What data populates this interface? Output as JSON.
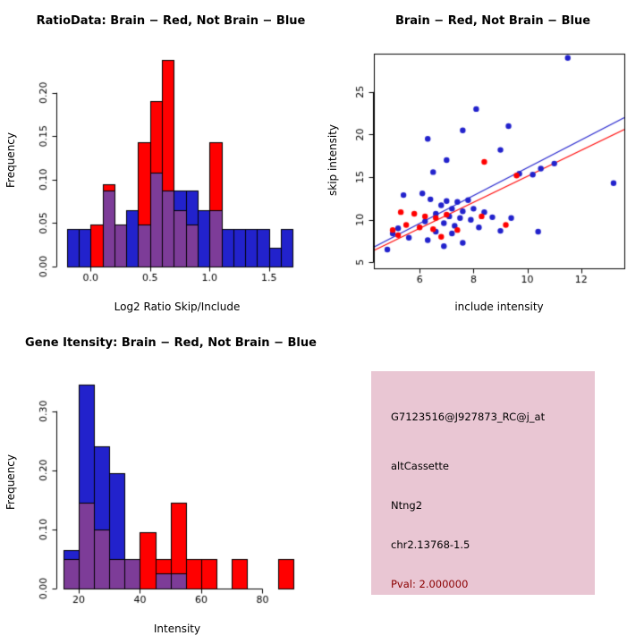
{
  "colors": {
    "red": "#FF0000",
    "blue": "#2222CC",
    "overlap_purple": "#7D3C98",
    "axis": "#000000",
    "info_box_bg": "#E9C6D3",
    "pval_text": "#8B0000"
  },
  "info_box": {
    "probe_id": "G7123516@J927873_RC@j_at",
    "event_type": "altCassette",
    "gene": "Ntng2",
    "location": "chr2.13768-1.5",
    "pval": "Pval: 2.000000"
  },
  "chart_data": [
    {
      "type": "bar",
      "variant": "overlaid-histograms",
      "title": "RatioData: Brain − Red, Not Brain − Blue",
      "xlabel": "Log2 Ratio Skip/Include",
      "ylabel": "Frequency",
      "legend": "Brain = red, Not Brain = blue, overlap = purple",
      "bin_start": -0.2,
      "bin_width": 0.1,
      "xlim": [
        -0.28,
        1.78
      ],
      "ylim": [
        0,
        0.245
      ],
      "xticks": [
        [
          0,
          "0.0"
        ],
        [
          0.5,
          "0.5"
        ],
        [
          1,
          "1.0"
        ],
        [
          1.5,
          "1.5"
        ]
      ],
      "yticks": [
        [
          0,
          "0.00"
        ],
        [
          0.05,
          "0.05"
        ],
        [
          0.1,
          "0.10"
        ],
        [
          0.15,
          "0.15"
        ],
        [
          0.2,
          "0.20"
        ]
      ],
      "series": [
        {
          "name": "Not Brain",
          "color": "blue",
          "values": [
            0.043,
            0.043,
            0,
            0.087,
            0.048,
            0.065,
            0.048,
            0.108,
            0.087,
            0.087,
            0.087,
            0.065,
            0.065,
            0.043,
            0.043,
            0.043,
            0.043,
            0.022,
            0.043
          ]
        },
        {
          "name": "Brain",
          "color": "red",
          "values": [
            0,
            0,
            0.048,
            0.095,
            0.048,
            0,
            0.143,
            0.19,
            0.238,
            0.065,
            0.048,
            0,
            0.143,
            0,
            0,
            0,
            0,
            0,
            0
          ]
        }
      ]
    },
    {
      "type": "scatter",
      "title": "Brain − Red, Not Brain − Blue",
      "xlabel": "include intensity",
      "ylabel": "skip intensity",
      "xlim": [
        4.3,
        13.6
      ],
      "ylim": [
        4.3,
        29.5
      ],
      "xticks": [
        [
          6,
          "6"
        ],
        [
          8,
          "8"
        ],
        [
          10,
          "10"
        ],
        [
          12,
          "12"
        ]
      ],
      "yticks": [
        [
          5,
          "5"
        ],
        [
          10,
          "10"
        ],
        [
          15,
          "15"
        ],
        [
          20,
          "20"
        ],
        [
          25,
          "25"
        ]
      ],
      "series": [
        {
          "name": "Not Brain",
          "color": "blue",
          "points": [
            [
              11.5,
              29
            ],
            [
              8.1,
              23
            ],
            [
              9.3,
              21
            ],
            [
              7.6,
              20.5
            ],
            [
              6.3,
              19.5
            ],
            [
              9.0,
              18.2
            ],
            [
              7.0,
              17
            ],
            [
              11.0,
              16.6
            ],
            [
              10.5,
              16
            ],
            [
              6.5,
              15.6
            ],
            [
              10.2,
              15.3
            ],
            [
              9.7,
              15.4
            ],
            [
              13.2,
              14.3
            ],
            [
              5.4,
              12.9
            ],
            [
              6.1,
              13.1
            ],
            [
              6.4,
              12.4
            ],
            [
              7.0,
              12.2
            ],
            [
              7.4,
              12.1
            ],
            [
              7.8,
              12.3
            ],
            [
              6.8,
              11.7
            ],
            [
              7.2,
              11.3
            ],
            [
              7.6,
              11.0
            ],
            [
              8.0,
              11.3
            ],
            [
              8.4,
              10.9
            ],
            [
              6.6,
              10.7
            ],
            [
              7.1,
              10.4
            ],
            [
              7.5,
              10.2
            ],
            [
              7.9,
              10.0
            ],
            [
              8.7,
              10.3
            ],
            [
              9.4,
              10.2
            ],
            [
              6.2,
              9.8
            ],
            [
              6.9,
              9.6
            ],
            [
              7.3,
              9.3
            ],
            [
              8.2,
              9.1
            ],
            [
              5.2,
              9.0
            ],
            [
              5.0,
              8.4
            ],
            [
              6.6,
              8.6
            ],
            [
              7.2,
              8.4
            ],
            [
              9.0,
              8.7
            ],
            [
              10.4,
              8.6
            ],
            [
              5.6,
              7.9
            ],
            [
              6.3,
              7.6
            ],
            [
              7.6,
              7.3
            ],
            [
              6.9,
              6.9
            ],
            [
              4.8,
              6.5
            ]
          ]
        },
        {
          "name": "Brain",
          "color": "red",
          "points": [
            [
              8.4,
              16.8
            ],
            [
              9.6,
              15.2
            ],
            [
              5.3,
              10.9
            ],
            [
              5.8,
              10.7
            ],
            [
              6.2,
              10.4
            ],
            [
              6.6,
              10.2
            ],
            [
              7.0,
              10.6
            ],
            [
              8.3,
              10.4
            ],
            [
              9.2,
              9.4
            ],
            [
              5.5,
              9.4
            ],
            [
              6.0,
              9.1
            ],
            [
              6.5,
              8.9
            ],
            [
              5.0,
              8.8
            ],
            [
              7.4,
              8.8
            ],
            [
              5.2,
              8.2
            ],
            [
              6.8,
              8.0
            ]
          ]
        }
      ],
      "lines": [
        {
          "name": "Not Brain fit",
          "color": "blue",
          "x1": 4.3,
          "y1": 6.8,
          "x2": 13.6,
          "y2": 22.0
        },
        {
          "name": "Brain fit",
          "color": "red",
          "x1": 4.3,
          "y1": 6.4,
          "x2": 13.6,
          "y2": 20.6
        }
      ]
    },
    {
      "type": "bar",
      "variant": "overlaid-histograms",
      "title": "Gene Itensity: Brain − Red, Not Brain − Blue",
      "xlabel": "Intensity",
      "ylabel": "Frequency",
      "legend": "Brain = red, Not Brain = blue, overlap = purple",
      "bin_start": 15,
      "bin_width": 5,
      "xlim": [
        13,
        93
      ],
      "ylim": [
        0,
        0.36
      ],
      "xticks": [
        [
          20,
          "20"
        ],
        [
          40,
          "40"
        ],
        [
          60,
          "60"
        ],
        [
          80,
          "80"
        ]
      ],
      "yticks": [
        [
          0,
          "0.00"
        ],
        [
          0.1,
          "0.10"
        ],
        [
          0.2,
          "0.20"
        ],
        [
          0.3,
          "0.30"
        ]
      ],
      "series": [
        {
          "name": "Not Brain",
          "color": "blue",
          "values": [
            0.065,
            0.345,
            0.24,
            0.195,
            0.05,
            0,
            0.025,
            0.025,
            0,
            0,
            0,
            0,
            0,
            0,
            0
          ]
        },
        {
          "name": "Brain",
          "color": "red",
          "values": [
            0.05,
            0.145,
            0.1,
            0.05,
            0.05,
            0.095,
            0.05,
            0.145,
            0.05,
            0.05,
            0,
            0.05,
            0,
            0,
            0.05
          ]
        }
      ]
    }
  ]
}
